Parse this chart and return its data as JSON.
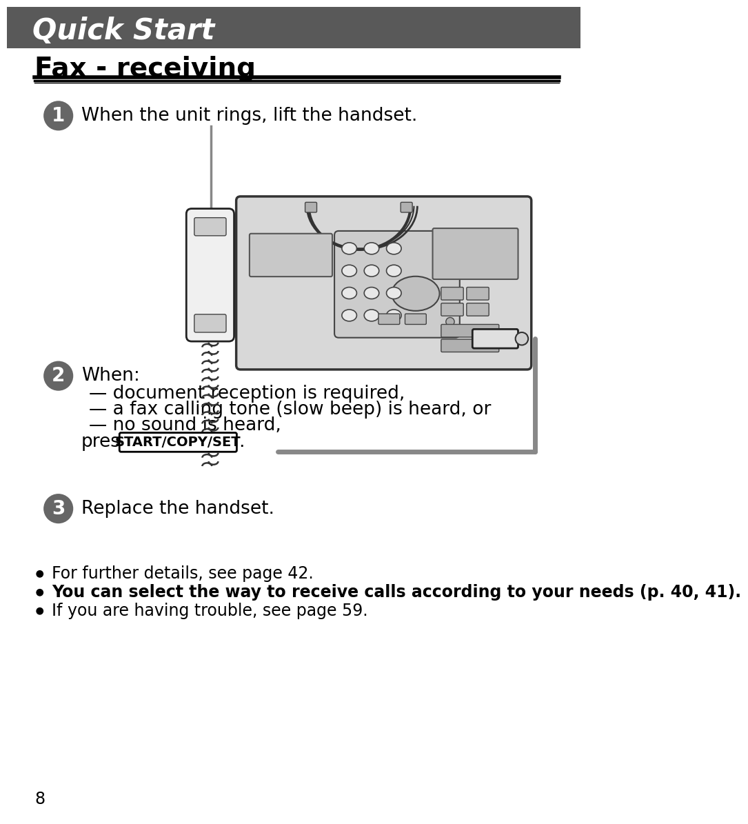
{
  "header_bg_color": "#595959",
  "header_text": "Quick Start",
  "header_text_color": "#ffffff",
  "page_bg_color": "#ffffff",
  "section_title": "Fax - receiving",
  "step1_text": "When the unit rings, lift the handset.",
  "step2_lines": [
    "When:",
    "— document reception is required,",
    "— a fax calling tone (slow beep) is heard, or",
    "— no sound is heard,",
    "press  START/COPY/SET ."
  ],
  "step3_text": "Replace the handset.",
  "bullet1": "For further details, see page 42.",
  "bullet2": "You can select the way to receive calls according to your needs (p. 40, 41).",
  "bullet3": "If you are having trouble, see page 59.",
  "page_number": "8",
  "circle_color": "#666666",
  "circle_text_color": "#ffffff"
}
